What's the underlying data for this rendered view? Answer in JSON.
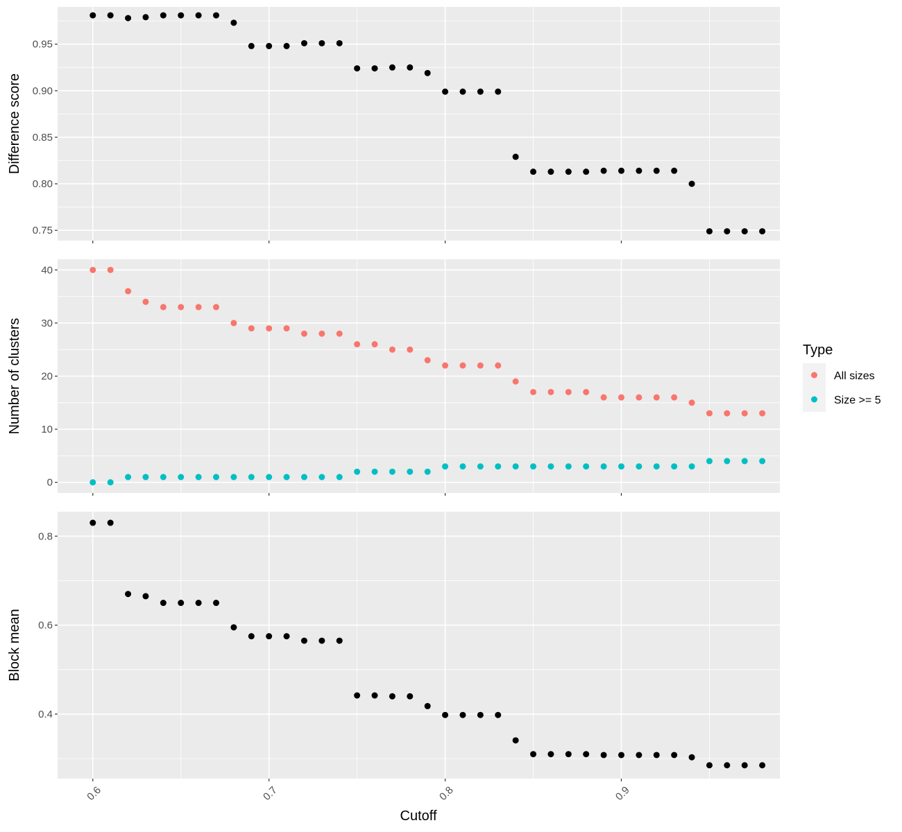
{
  "chart_data": {
    "type": "scatter",
    "facet_layout": "vertical",
    "shared_x": {
      "label": "Cutoff",
      "lim": [
        0.58,
        0.99
      ],
      "ticks": [
        0.6,
        0.7,
        0.8,
        0.9
      ],
      "tick_labels": [
        "0.6",
        "0.7",
        "0.8",
        "0.9"
      ],
      "tick_label_rotation": "45deg"
    },
    "x": [
      0.6,
      0.61,
      0.62,
      0.63,
      0.64,
      0.65,
      0.66,
      0.67,
      0.68,
      0.69,
      0.7,
      0.71,
      0.72,
      0.73,
      0.74,
      0.75,
      0.76,
      0.77,
      0.78,
      0.79,
      0.8,
      0.81,
      0.82,
      0.83,
      0.84,
      0.85,
      0.86,
      0.87,
      0.88,
      0.89,
      0.9,
      0.91,
      0.92,
      0.93,
      0.94,
      0.95,
      0.96,
      0.97,
      0.98
    ],
    "panels": [
      {
        "ylabel": "Difference score",
        "ylim": [
          0.739,
          0.99
        ],
        "yticks": [
          0.75,
          0.8,
          0.85,
          0.9,
          0.95
        ],
        "ytick_labels": [
          "0.75",
          "0.80",
          "0.85",
          "0.90",
          "0.95"
        ],
        "series": [
          {
            "color": "#000000",
            "values": [
              0.981,
              0.981,
              0.978,
              0.979,
              0.981,
              0.981,
              0.981,
              0.981,
              0.973,
              0.948,
              0.948,
              0.948,
              0.951,
              0.951,
              0.951,
              0.924,
              0.924,
              0.925,
              0.925,
              0.919,
              0.899,
              0.899,
              0.899,
              0.899,
              0.829,
              0.813,
              0.813,
              0.813,
              0.813,
              0.814,
              0.814,
              0.814,
              0.814,
              0.814,
              0.8,
              0.749,
              0.749,
              0.749,
              0.749
            ]
          }
        ]
      },
      {
        "ylabel": "Number of clusters",
        "ylim": [
          -2,
          42
        ],
        "yticks": [
          0,
          10,
          20,
          30,
          40
        ],
        "ytick_labels": [
          "0",
          "10",
          "20",
          "30",
          "40"
        ],
        "series": [
          {
            "name": "All sizes",
            "color": "#F8766D",
            "values": [
              40,
              40,
              36,
              34,
              33,
              33,
              33,
              33,
              30,
              29,
              29,
              29,
              28,
              28,
              28,
              26,
              26,
              25,
              25,
              23,
              22,
              22,
              22,
              22,
              19,
              17,
              17,
              17,
              17,
              16,
              16,
              16,
              16,
              16,
              15,
              13,
              13,
              13,
              13
            ]
          },
          {
            "name": "Size >= 5",
            "color": "#00BFC4",
            "values": [
              0,
              0,
              1,
              1,
              1,
              1,
              1,
              1,
              1,
              1,
              1,
              1,
              1,
              1,
              1,
              2,
              2,
              2,
              2,
              2,
              3,
              3,
              3,
              3,
              3,
              3,
              3,
              3,
              3,
              3,
              3,
              3,
              3,
              3,
              3,
              4,
              4,
              4,
              4
            ]
          }
        ]
      },
      {
        "ylabel": "Block mean",
        "ylim": [
          0.255,
          0.855
        ],
        "yticks": [
          0.4,
          0.6,
          0.8
        ],
        "ytick_labels": [
          "0.4",
          "0.6",
          "0.8"
        ],
        "series": [
          {
            "color": "#000000",
            "values": [
              0.83,
              0.83,
              0.67,
              0.665,
              0.65,
              0.65,
              0.65,
              0.65,
              0.595,
              0.575,
              0.575,
              0.575,
              0.565,
              0.565,
              0.565,
              0.442,
              0.442,
              0.44,
              0.44,
              0.418,
              0.398,
              0.398,
              0.398,
              0.398,
              0.341,
              0.31,
              0.31,
              0.31,
              0.31,
              0.308,
              0.308,
              0.308,
              0.308,
              0.308,
              0.303,
              0.285,
              0.285,
              0.285,
              0.285
            ]
          }
        ]
      }
    ],
    "legend": {
      "title": "Type",
      "placement": "right",
      "entries": [
        {
          "label": "All sizes",
          "color": "#F8766D"
        },
        {
          "label": "Size >= 5",
          "color": "#00BFC4"
        }
      ]
    },
    "grid": true,
    "panel_background": "#EBEBEB",
    "gridline_color": "#FFFFFF"
  }
}
